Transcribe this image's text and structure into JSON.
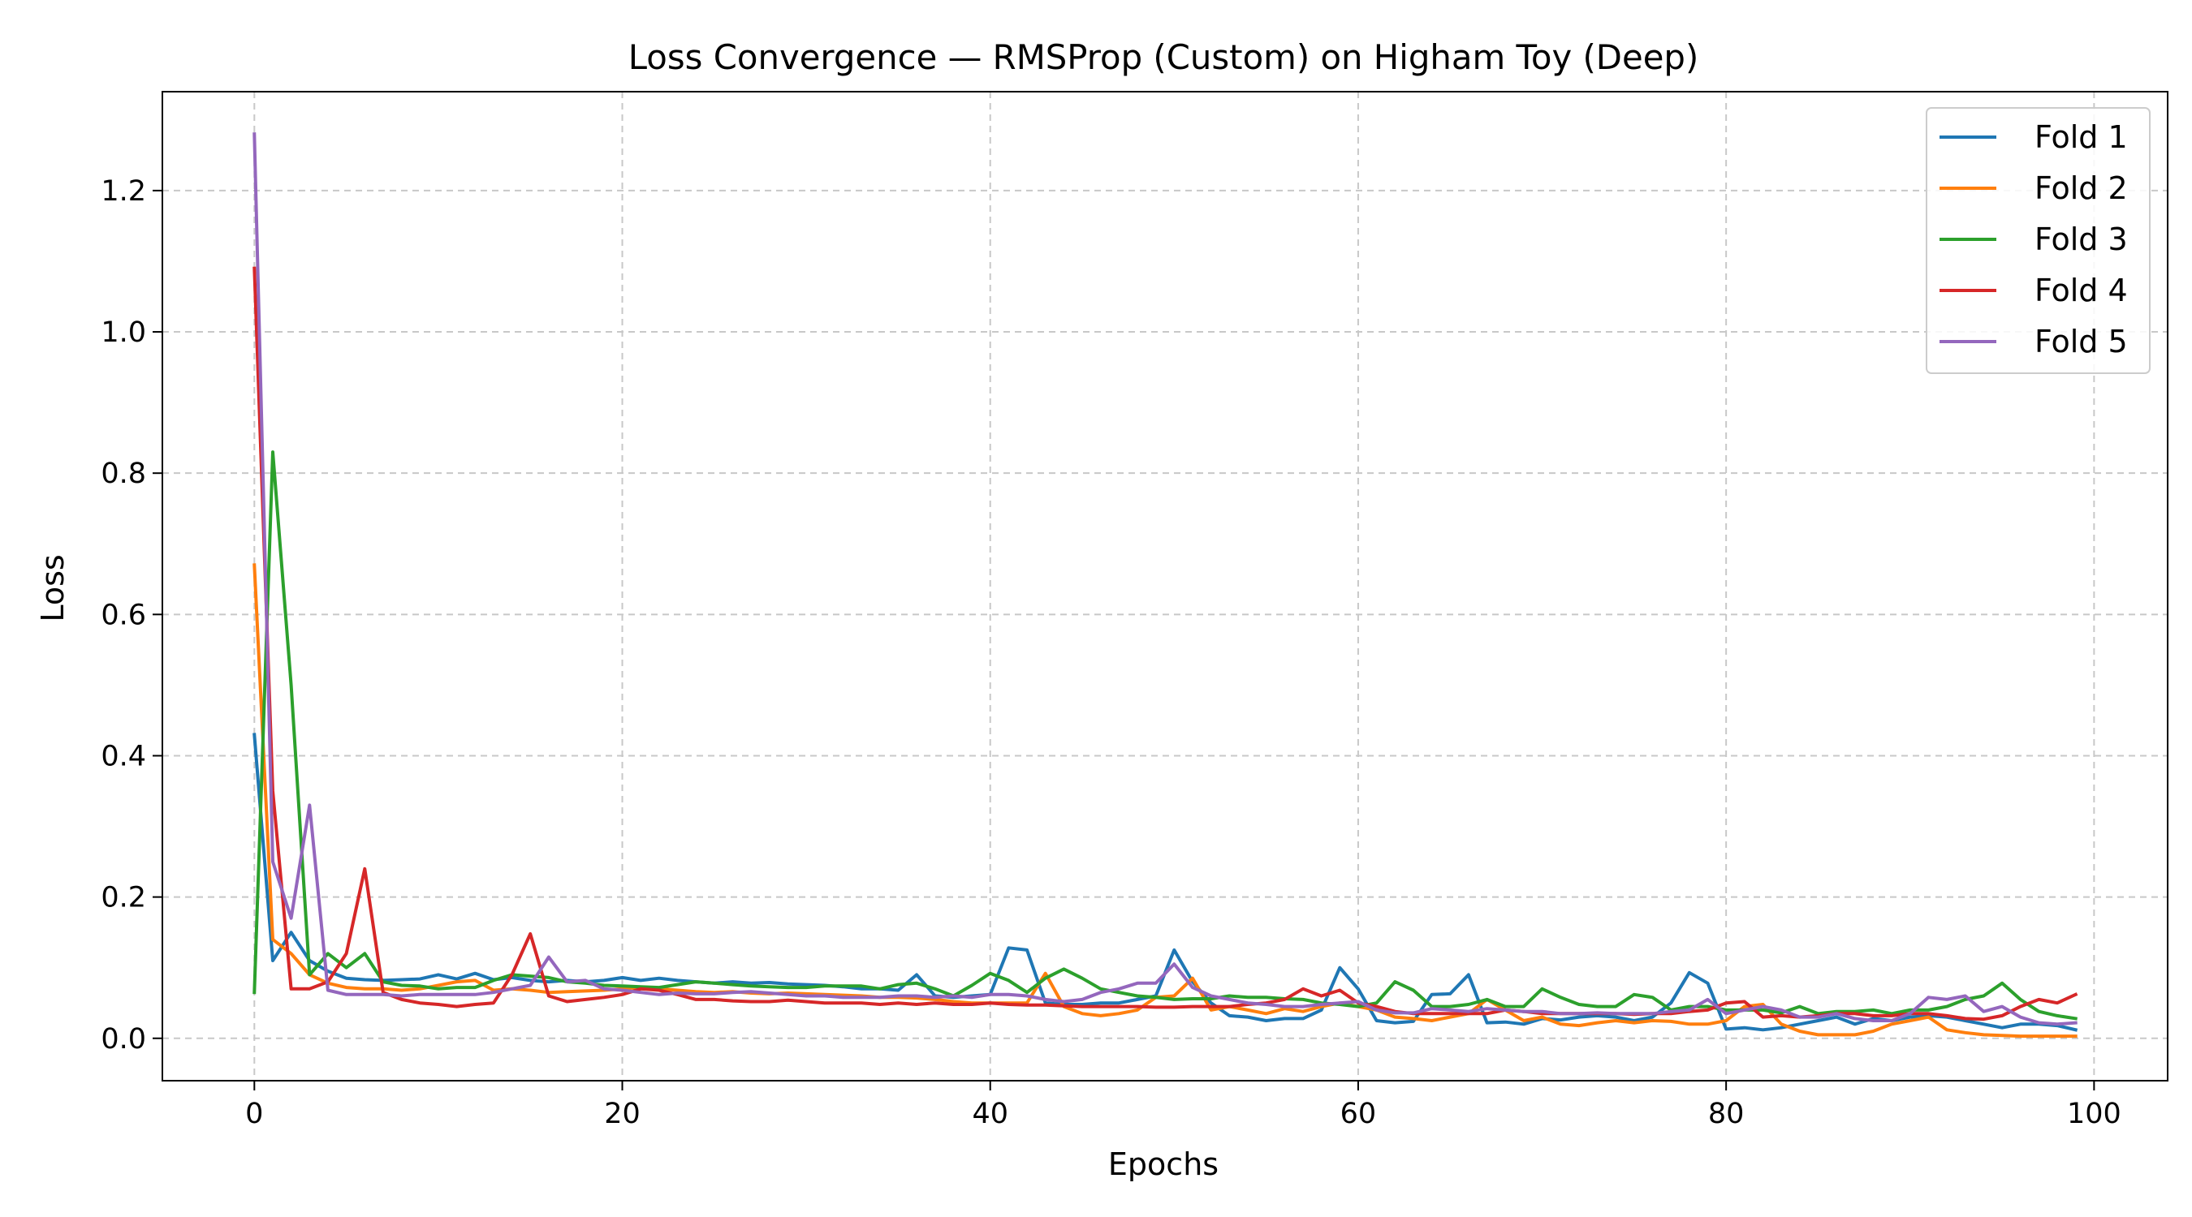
{
  "chart_data": {
    "type": "line",
    "title": "Loss Convergence — RMSProp (Custom) on Higham Toy (Deep)",
    "xlabel": "Epochs",
    "ylabel": "Loss",
    "xlim": [
      -5,
      104
    ],
    "ylim": [
      -0.06,
      1.34
    ],
    "xticks": [
      0,
      20,
      40,
      60,
      80,
      100
    ],
    "xtick_labels": [
      "0",
      "20",
      "40",
      "60",
      "80",
      "100"
    ],
    "yticks": [
      0.0,
      0.2,
      0.4,
      0.6,
      0.8,
      1.0,
      1.2
    ],
    "ytick_labels": [
      "0.0",
      "0.2",
      "0.4",
      "0.6",
      "0.8",
      "1.0",
      "1.2"
    ],
    "grid": true,
    "grid_style": "dashed",
    "legend_position": "top-right",
    "x": [
      0,
      1,
      2,
      3,
      4,
      5,
      6,
      7,
      8,
      9,
      10,
      11,
      12,
      13,
      14,
      15,
      16,
      17,
      18,
      19,
      20,
      21,
      22,
      23,
      24,
      25,
      26,
      27,
      28,
      29,
      30,
      31,
      32,
      33,
      34,
      35,
      36,
      37,
      38,
      39,
      40,
      41,
      42,
      43,
      44,
      45,
      46,
      47,
      48,
      49,
      50,
      51,
      52,
      53,
      54,
      55,
      56,
      57,
      58,
      59,
      60,
      61,
      62,
      63,
      64,
      65,
      66,
      67,
      68,
      69,
      70,
      71,
      72,
      73,
      74,
      75,
      76,
      77,
      78,
      79,
      80,
      81,
      82,
      83,
      84,
      85,
      86,
      87,
      88,
      89,
      90,
      91,
      92,
      93,
      94,
      95,
      96,
      97,
      98,
      99
    ],
    "series": [
      {
        "name": "Fold 1",
        "color": "#1f77b4",
        "values": [
          0.43,
          0.11,
          0.15,
          0.11,
          0.095,
          0.085,
          0.083,
          0.082,
          0.083,
          0.084,
          0.09,
          0.084,
          0.092,
          0.083,
          0.086,
          0.082,
          0.08,
          0.082,
          0.08,
          0.082,
          0.086,
          0.082,
          0.085,
          0.082,
          0.08,
          0.078,
          0.08,
          0.078,
          0.079,
          0.077,
          0.076,
          0.075,
          0.073,
          0.07,
          0.07,
          0.068,
          0.09,
          0.06,
          0.058,
          0.06,
          0.062,
          0.128,
          0.125,
          0.05,
          0.048,
          0.048,
          0.05,
          0.05,
          0.055,
          0.06,
          0.125,
          0.08,
          0.05,
          0.032,
          0.03,
          0.025,
          0.028,
          0.028,
          0.04,
          0.1,
          0.07,
          0.025,
          0.022,
          0.024,
          0.062,
          0.063,
          0.09,
          0.022,
          0.023,
          0.02,
          0.028,
          0.026,
          0.03,
          0.032,
          0.03,
          0.025,
          0.03,
          0.05,
          0.093,
          0.078,
          0.013,
          0.015,
          0.012,
          0.015,
          0.02,
          0.025,
          0.03,
          0.02,
          0.028,
          0.025,
          0.03,
          0.032,
          0.03,
          0.025,
          0.02,
          0.015,
          0.02,
          0.02,
          0.018,
          0.012
        ]
      },
      {
        "name": "Fold 2",
        "color": "#ff7f0e",
        "values": [
          0.67,
          0.14,
          0.12,
          0.09,
          0.078,
          0.072,
          0.07,
          0.07,
          0.068,
          0.07,
          0.075,
          0.08,
          0.082,
          0.068,
          0.07,
          0.068,
          0.065,
          0.066,
          0.067,
          0.068,
          0.07,
          0.072,
          0.07,
          0.068,
          0.066,
          0.065,
          0.066,
          0.064,
          0.063,
          0.064,
          0.063,
          0.062,
          0.061,
          0.06,
          0.058,
          0.058,
          0.057,
          0.055,
          0.052,
          0.05,
          0.05,
          0.05,
          0.05,
          0.092,
          0.045,
          0.035,
          0.032,
          0.035,
          0.04,
          0.058,
          0.06,
          0.085,
          0.04,
          0.045,
          0.04,
          0.035,
          0.042,
          0.038,
          0.045,
          0.05,
          0.045,
          0.04,
          0.03,
          0.028,
          0.025,
          0.03,
          0.035,
          0.055,
          0.04,
          0.025,
          0.03,
          0.02,
          0.018,
          0.022,
          0.025,
          0.022,
          0.025,
          0.024,
          0.02,
          0.02,
          0.025,
          0.045,
          0.048,
          0.02,
          0.01,
          0.005,
          0.005,
          0.005,
          0.01,
          0.02,
          0.025,
          0.03,
          0.012,
          0.008,
          0.005,
          0.004,
          0.003,
          0.003,
          0.003,
          0.003
        ]
      },
      {
        "name": "Fold 3",
        "color": "#2ca02c",
        "values": [
          0.065,
          0.83,
          0.5,
          0.09,
          0.12,
          0.1,
          0.12,
          0.08,
          0.075,
          0.074,
          0.07,
          0.072,
          0.072,
          0.082,
          0.09,
          0.088,
          0.086,
          0.08,
          0.078,
          0.075,
          0.074,
          0.073,
          0.072,
          0.076,
          0.08,
          0.078,
          0.076,
          0.074,
          0.073,
          0.072,
          0.072,
          0.074,
          0.074,
          0.074,
          0.07,
          0.076,
          0.078,
          0.07,
          0.06,
          0.075,
          0.092,
          0.082,
          0.065,
          0.085,
          0.098,
          0.085,
          0.07,
          0.065,
          0.06,
          0.058,
          0.055,
          0.056,
          0.056,
          0.06,
          0.058,
          0.058,
          0.056,
          0.055,
          0.05,
          0.048,
          0.045,
          0.05,
          0.08,
          0.068,
          0.045,
          0.045,
          0.048,
          0.055,
          0.045,
          0.045,
          0.07,
          0.058,
          0.048,
          0.045,
          0.045,
          0.062,
          0.058,
          0.04,
          0.045,
          0.045,
          0.04,
          0.04,
          0.04,
          0.036,
          0.045,
          0.035,
          0.038,
          0.038,
          0.04,
          0.035,
          0.04,
          0.04,
          0.045,
          0.055,
          0.06,
          0.078,
          0.055,
          0.038,
          0.032,
          0.028
        ]
      },
      {
        "name": "Fold 4",
        "color": "#d62728",
        "values": [
          1.09,
          0.35,
          0.07,
          0.07,
          0.08,
          0.12,
          0.24,
          0.065,
          0.055,
          0.05,
          0.048,
          0.045,
          0.048,
          0.05,
          0.09,
          0.148,
          0.06,
          0.052,
          0.055,
          0.058,
          0.062,
          0.07,
          0.068,
          0.062,
          0.055,
          0.055,
          0.053,
          0.052,
          0.052,
          0.054,
          0.052,
          0.05,
          0.05,
          0.05,
          0.048,
          0.05,
          0.048,
          0.05,
          0.048,
          0.048,
          0.05,
          0.048,
          0.047,
          0.047,
          0.046,
          0.045,
          0.045,
          0.045,
          0.045,
          0.044,
          0.044,
          0.045,
          0.045,
          0.045,
          0.048,
          0.05,
          0.055,
          0.07,
          0.06,
          0.068,
          0.05,
          0.045,
          0.038,
          0.035,
          0.035,
          0.035,
          0.035,
          0.035,
          0.04,
          0.038,
          0.035,
          0.035,
          0.035,
          0.035,
          0.035,
          0.034,
          0.035,
          0.035,
          0.038,
          0.04,
          0.05,
          0.052,
          0.03,
          0.032,
          0.03,
          0.032,
          0.035,
          0.035,
          0.032,
          0.032,
          0.035,
          0.035,
          0.032,
          0.028,
          0.027,
          0.032,
          0.045,
          0.055,
          0.05,
          0.062
        ]
      },
      {
        "name": "Fold 5",
        "color": "#9467bd",
        "values": [
          1.28,
          0.25,
          0.17,
          0.33,
          0.068,
          0.062,
          0.062,
          0.062,
          0.06,
          0.062,
          0.062,
          0.062,
          0.062,
          0.065,
          0.07,
          0.075,
          0.115,
          0.08,
          0.082,
          0.07,
          0.068,
          0.065,
          0.062,
          0.064,
          0.063,
          0.063,
          0.065,
          0.066,
          0.064,
          0.062,
          0.06,
          0.06,
          0.058,
          0.058,
          0.058,
          0.06,
          0.06,
          0.058,
          0.06,
          0.058,
          0.062,
          0.062,
          0.06,
          0.055,
          0.052,
          0.055,
          0.065,
          0.07,
          0.078,
          0.078,
          0.105,
          0.072,
          0.06,
          0.055,
          0.05,
          0.048,
          0.045,
          0.045,
          0.048,
          0.05,
          0.052,
          0.04,
          0.036,
          0.036,
          0.042,
          0.04,
          0.038,
          0.042,
          0.04,
          0.038,
          0.038,
          0.035,
          0.035,
          0.036,
          0.035,
          0.035,
          0.035,
          0.038,
          0.04,
          0.055,
          0.035,
          0.04,
          0.045,
          0.04,
          0.03,
          0.03,
          0.035,
          0.028,
          0.025,
          0.025,
          0.035,
          0.058,
          0.055,
          0.06,
          0.038,
          0.045,
          0.03,
          0.022,
          0.02,
          0.022
        ]
      }
    ]
  }
}
